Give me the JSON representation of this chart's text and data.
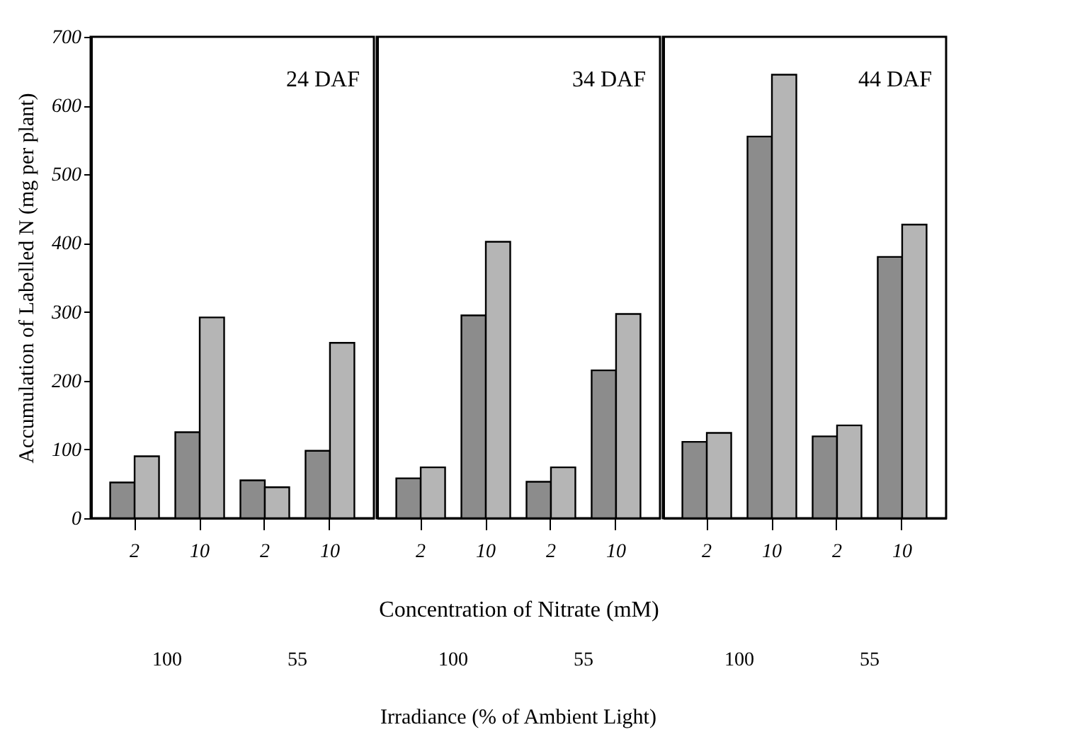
{
  "chart_data": [
    {
      "type": "bar",
      "title": "24 DAF",
      "ylabel": "Accumulation of Labelled N (mg per plant)",
      "categories": [
        "2",
        "10",
        "2",
        "10"
      ],
      "series": [
        {
          "color": "#8c8c8c",
          "values": [
            52,
            125,
            55,
            98
          ]
        },
        {
          "color": "#b5b5b5",
          "values": [
            90,
            292,
            45,
            255
          ]
        }
      ],
      "annotations": [
        "100",
        "55"
      ],
      "ylim": [
        0,
        700
      ],
      "yticks": [
        0,
        100,
        200,
        300,
        400,
        500,
        600,
        700
      ],
      "grid": false,
      "legend": false
    },
    {
      "type": "bar",
      "title": "34 DAF",
      "xlabel": "Concentration of Nitrate (mM)",
      "categories": [
        "2",
        "10",
        "2",
        "10"
      ],
      "series": [
        {
          "color": "#8c8c8c",
          "values": [
            58,
            295,
            53,
            215
          ]
        },
        {
          "color": "#b5b5b5",
          "values": [
            74,
            402,
            74,
            297
          ]
        }
      ],
      "annotations": [
        "100",
        "55",
        "Irradiance (% of Ambient Light)"
      ],
      "ylim": [
        0,
        700
      ],
      "yticks": [
        0,
        100,
        200,
        300,
        400,
        500,
        600,
        700
      ],
      "tick_labels": "x",
      "grid": false,
      "legend": false
    },
    {
      "type": "bar",
      "title": "44 DAF",
      "categories": [
        "2",
        "10",
        "2",
        "10"
      ],
      "series": [
        {
          "color": "#8c8c8c",
          "values": [
            111,
            555,
            119,
            380
          ]
        },
        {
          "color": "#b5b5b5",
          "values": [
            124,
            645,
            135,
            427
          ]
        }
      ],
      "annotations": [
        "100",
        "55"
      ],
      "ylim": [
        0,
        700
      ],
      "yticks": [
        0,
        100,
        200,
        300,
        400,
        500,
        600,
        700
      ],
      "tick_labels": "x",
      "grid": false,
      "legend": false
    }
  ]
}
